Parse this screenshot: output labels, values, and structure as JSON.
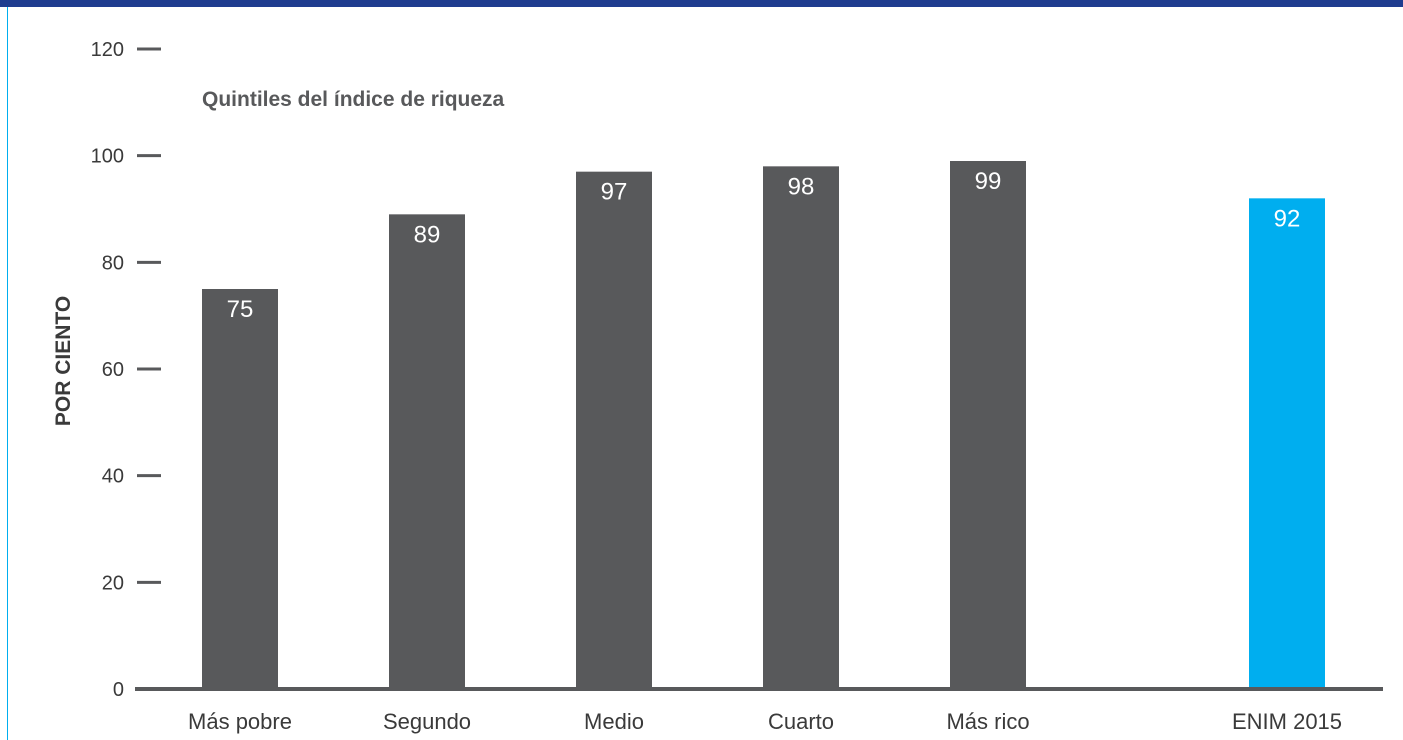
{
  "colors": {
    "frame": "#1f3c8f",
    "frame_rule": "#00aeef",
    "bar": "#58595b",
    "highlight_bar": "#00aeef",
    "axis": "#58595b"
  },
  "chart_data": {
    "type": "bar",
    "subtitle": "Quintiles del índice de riqueza",
    "ylabel": "POR CIENTO",
    "xlabel": "",
    "ylim": [
      0,
      120
    ],
    "yticks": [
      "0",
      "20",
      "40",
      "60",
      "80",
      "100",
      "120"
    ],
    "categories": [
      "Más pobre",
      "Segundo",
      "Medio",
      "Cuarto",
      "Más rico",
      "ENIM 2015"
    ],
    "values": [
      75,
      89,
      97,
      98,
      99,
      92
    ],
    "highlight": [
      false,
      false,
      false,
      false,
      false,
      true
    ],
    "grid": false,
    "legend": "none"
  }
}
